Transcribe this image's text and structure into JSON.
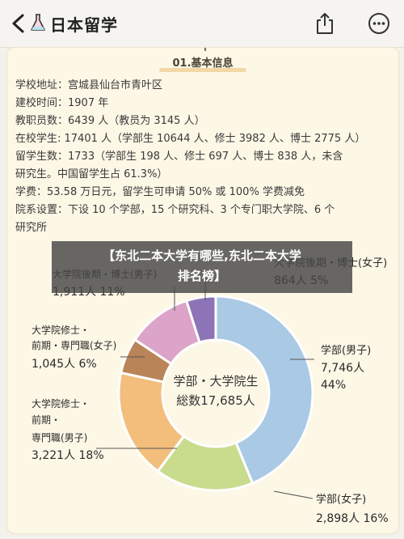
{
  "app": {
    "title": "日本留学",
    "icons": {
      "back": "back-arrow-icon",
      "logo": "flask-icon",
      "share": "share-icon",
      "more": "more-options-icon"
    },
    "accent": "#1a2a4a"
  },
  "section": {
    "title": "01.基本信息",
    "lines": [
      "学校地址：宫城县仙台市青叶区",
      "建校时间：1907 年",
      "教职员数：6439 人（教员为 3145 人）",
      "在校学生: 17401 人（学部生 10644 人、修士 3982 人、博士 2775 人）",
      "留学生数：1733（学部生 198 人、修士 697 人、博士 838 人，未含",
      "研究生。中国留学生占 61.3%）",
      "学费：53.58 万日元，留学生可申请 50% 或 100% 学费减免",
      "院系设置：下设 10 个学部，15 个研究科、3 个专门职大学院、6 个",
      "研究所"
    ]
  },
  "banner": {
    "line1": "【东北二本大学有哪些,东北二本大学",
    "line2": "排名榜】"
  },
  "chart_data": {
    "type": "pie",
    "donut": true,
    "center_label": [
      "学部・大学院生",
      "総数17,685人"
    ],
    "slices": [
      {
        "label": [
          "学部(男子)",
          "7,746人",
          "44%"
        ],
        "value": 7746,
        "percent": 44,
        "color": "#a9c9e4"
      },
      {
        "label": [
          "学部(女子)",
          "2,898人 16%"
        ],
        "value": 2898,
        "percent": 16,
        "color": "#c9dc8e"
      },
      {
        "label": [
          "大学院修士・",
          "前期・",
          "専門職(男子)",
          "3,221人 18%"
        ],
        "value": 3221,
        "percent": 18,
        "color": "#f3be7c"
      },
      {
        "label": [
          "大学院修士・",
          "前期・専門職(女子)",
          "1,045人 6%"
        ],
        "value": 1045,
        "percent": 6,
        "color": "#b98457"
      },
      {
        "label": [
          "大学院後期・博士(男子)",
          "1,911人 11%"
        ],
        "value": 1911,
        "percent": 11,
        "color": "#dba4c8"
      },
      {
        "label": [
          "大学院後期・博士(女子)",
          "864人 5%"
        ],
        "value": 864,
        "percent": 5,
        "color": "#8d74b6"
      }
    ]
  }
}
